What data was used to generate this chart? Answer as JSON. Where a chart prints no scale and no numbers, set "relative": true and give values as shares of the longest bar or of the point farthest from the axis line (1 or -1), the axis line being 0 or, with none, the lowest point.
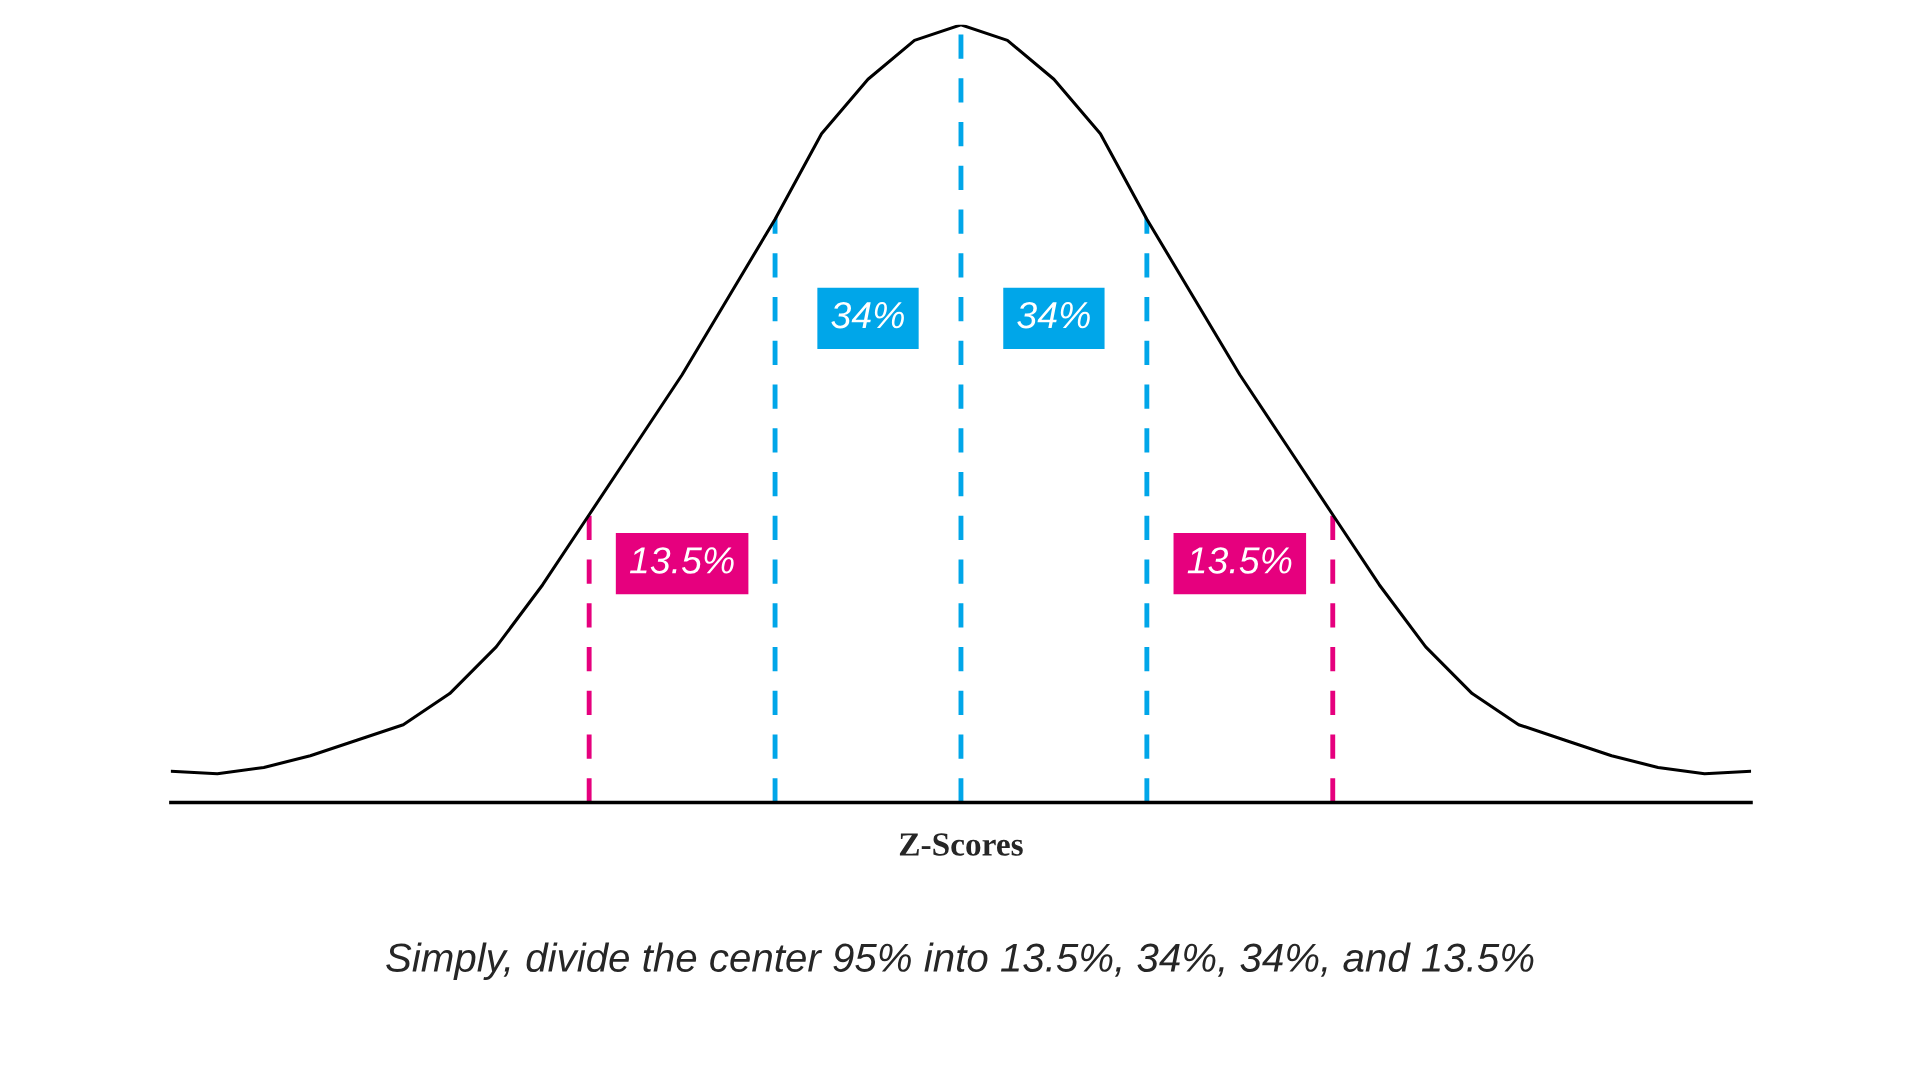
{
  "chart_data": {
    "type": "line",
    "relative": true,
    "xlabel": "Z-Scores",
    "categories": [
      null,
      null,
      null,
      null,
      null,
      null,
      null,
      null,
      null,
      null,
      null,
      null,
      null,
      null,
      null,
      null,
      null,
      null,
      null,
      null,
      null,
      null,
      null,
      null,
      null,
      null,
      null,
      null,
      null,
      null,
      null,
      null,
      null,
      null,
      null
    ],
    "series": [
      {
        "color": "#000000",
        "values": [
          0.04,
          0.037,
          0.045,
          0.06,
          0.08,
          0.1,
          0.14,
          0.2,
          0.28,
          0.37,
          0.46,
          0.55,
          0.65,
          0.75,
          0.86,
          0.93,
          0.98,
          1.0,
          0.98,
          0.93,
          0.86,
          0.75,
          0.65,
          0.55,
          0.46,
          0.37,
          0.28,
          0.2,
          0.14,
          0.1,
          0.08,
          0.06,
          0.045,
          0.037,
          0.04
        ]
      }
    ],
    "annotations": [
      "13.5%",
      "34%",
      "34%",
      "13.5%",
      "Simply, divide the center 95% into 13.5%, 34%, 34%, and 13.5%"
    ],
    "grid": "x",
    "legend": false,
    "marker": "none",
    "line_style": "solid"
  }
}
